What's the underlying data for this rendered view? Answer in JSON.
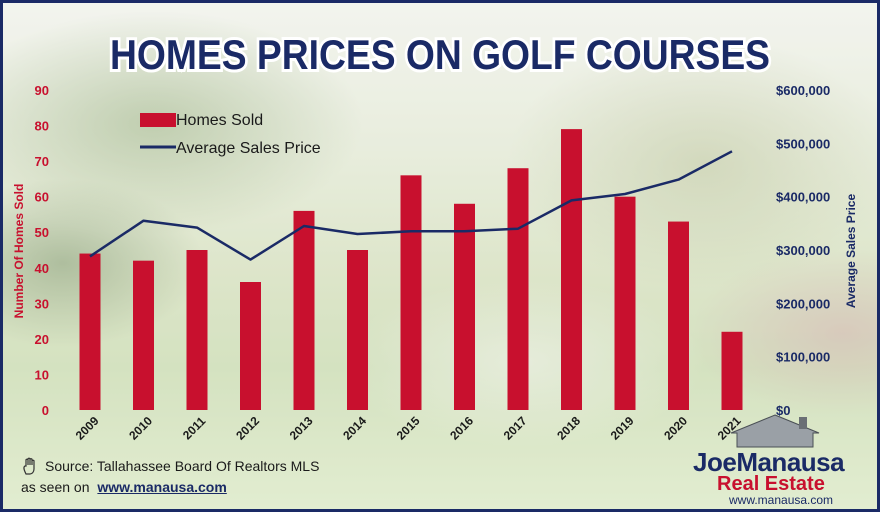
{
  "chart_data": {
    "type": "bar+line",
    "title": "HOMES PRICES ON GOLF COURSES",
    "categories": [
      "2009",
      "2010",
      "2011",
      "2012",
      "2013",
      "2014",
      "2015",
      "2016",
      "2017",
      "2018",
      "2019",
      "2020",
      "2021"
    ],
    "series": [
      {
        "name": "Homes Sold",
        "type": "bar",
        "axis": "left",
        "color": "#c8102e",
        "values": [
          44,
          42,
          45,
          36,
          56,
          45,
          66,
          58,
          68,
          79,
          60,
          53,
          22
        ]
      },
      {
        "name": "Average Sales Price",
        "type": "line",
        "axis": "right",
        "color": "#1a2a66",
        "values": [
          288000,
          355000,
          342000,
          282000,
          345000,
          330000,
          335000,
          335000,
          340000,
          393000,
          405000,
          432000,
          485000
        ]
      }
    ],
    "ylabel_left": "Number Of Homes Sold",
    "ylabel_right": "Average Sales Price",
    "ylim_left": [
      0,
      90
    ],
    "yticks_left": [
      "0",
      "10",
      "20",
      "30",
      "40",
      "50",
      "60",
      "70",
      "80",
      "90"
    ],
    "ylim_right": [
      0,
      600000
    ],
    "yticks_right": [
      "$0",
      "$100,000",
      "$200,000",
      "$300,000",
      "$400,000",
      "$500,000",
      "$600,000"
    ],
    "legend_position": "top-left",
    "grid": false
  },
  "footer": {
    "source": "Source: Tallahassee Board Of Realtors MLS",
    "seen_prefix": "as seen on",
    "seen_url": "www.manausa.com"
  },
  "logo": {
    "first": "Joe",
    "last": "Manausa",
    "sub": "Real Estate",
    "url": "www.manausa.com"
  },
  "colors": {
    "bar": "#c8102e",
    "line": "#1a2a66",
    "title": "#1a2a66",
    "left_axis_text": "#c8102e",
    "right_axis_text": "#1a2a66"
  }
}
